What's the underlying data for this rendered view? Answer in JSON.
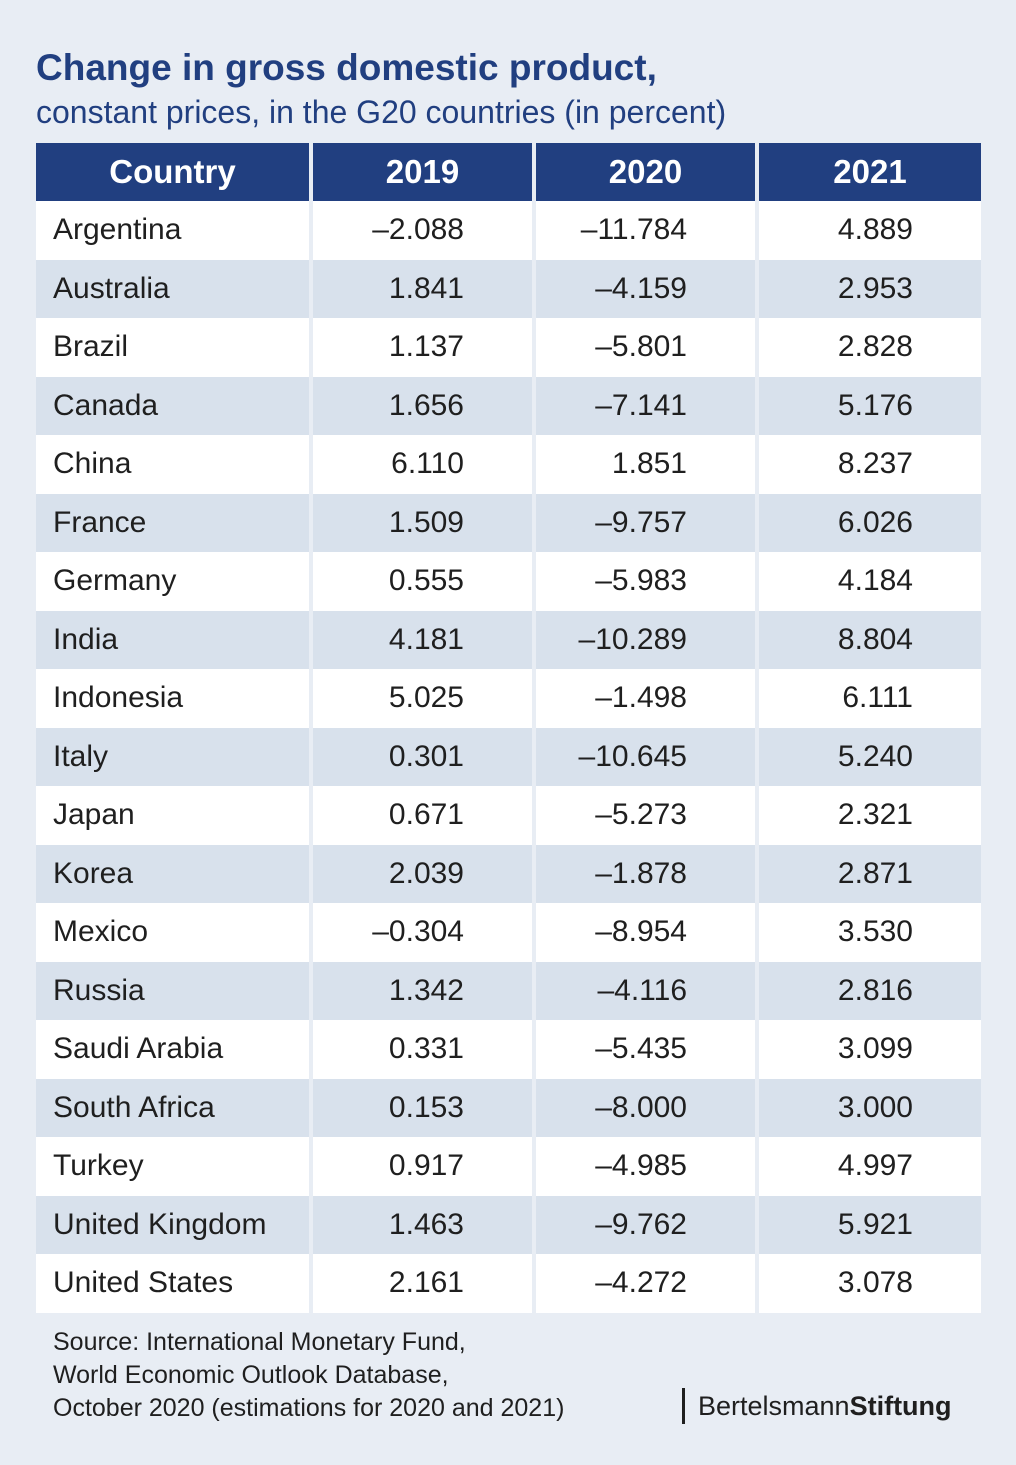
{
  "header": {
    "title": "Change in gross domestic product,",
    "subtitle": "constant prices, in the G20 countries (in percent)"
  },
  "chart_data": {
    "type": "table",
    "title": "Change in gross domestic product,",
    "subtitle": "constant prices, in the G20 countries (in percent)",
    "columns": [
      "Country",
      "2019",
      "2020",
      "2021"
    ],
    "rows": [
      [
        "Argentina",
        "–2.088",
        "–11.784",
        "4.889"
      ],
      [
        "Australia",
        "1.841",
        "–4.159",
        "2.953"
      ],
      [
        "Brazil",
        "1.137",
        "–5.801",
        "2.828"
      ],
      [
        "Canada",
        "1.656",
        "–7.141",
        "5.176"
      ],
      [
        "China",
        "6.110",
        "1.851",
        "8.237"
      ],
      [
        "France",
        "1.509",
        "–9.757",
        "6.026"
      ],
      [
        "Germany",
        "0.555",
        "–5.983",
        "4.184"
      ],
      [
        "India",
        "4.181",
        "–10.289",
        "8.804"
      ],
      [
        "Indonesia",
        "5.025",
        "–1.498",
        "6.111"
      ],
      [
        "Italy",
        "0.301",
        "–10.645",
        "5.240"
      ],
      [
        "Japan",
        "0.671",
        "–5.273",
        "2.321"
      ],
      [
        "Korea",
        "2.039",
        "–1.878",
        "2.871"
      ],
      [
        "Mexico",
        "–0.304",
        "–8.954",
        "3.530"
      ],
      [
        "Russia",
        "1.342",
        "–4.116",
        "2.816"
      ],
      [
        "Saudi Arabia",
        "0.331",
        "–5.435",
        "3.099"
      ],
      [
        "South Africa",
        "0.153",
        "–8.000",
        "3.000"
      ],
      [
        "Turkey",
        "0.917",
        "–4.985",
        "4.997"
      ],
      [
        "United Kingdom",
        "1.463",
        "–9.762",
        "5.921"
      ],
      [
        "United States",
        "2.161",
        "–4.272",
        "3.078"
      ]
    ]
  },
  "source": {
    "lines": [
      "Source: International Monetary Fund,",
      "World Economic Outlook Database,",
      "October 2020 (estimations for 2020 and 2021)"
    ]
  },
  "logo": {
    "regular": "Bertelsmann",
    "bold": "Stiftung"
  },
  "colors": {
    "header_bg": "#213f80",
    "title": "#213f80",
    "page_bg": "#e8edf4",
    "row_alt": "#d8e1ec",
    "row": "#ffffff"
  }
}
